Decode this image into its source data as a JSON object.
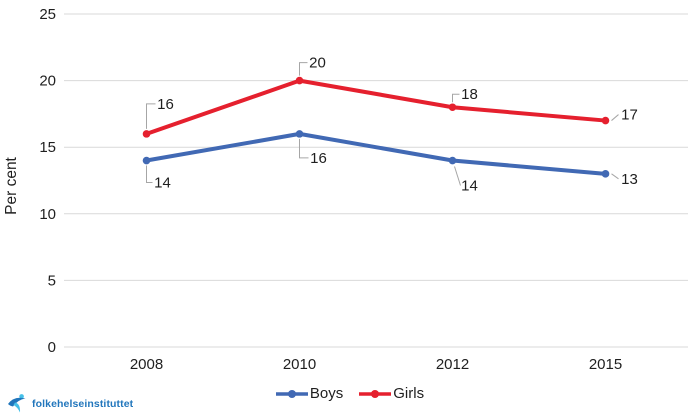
{
  "chart_data": {
    "type": "line",
    "categories": [
      "2008",
      "2010",
      "2012",
      "2015"
    ],
    "series": [
      {
        "name": "Boys",
        "color": "#4169B4",
        "values": [
          14,
          16,
          14,
          13
        ]
      },
      {
        "name": "Girls",
        "color": "#E5202E",
        "values": [
          16,
          20,
          18,
          17
        ]
      }
    ],
    "title": "",
    "xlabel": "",
    "ylabel": "Per cent",
    "ylim": [
      0,
      25
    ],
    "yticks": [
      0,
      5,
      10,
      15,
      20,
      25
    ],
    "grid": true,
    "data_labels": true,
    "legend_position": "bottom"
  },
  "legend": {
    "items": [
      "Boys",
      "Girls"
    ]
  },
  "logo": {
    "text": "folkehelseinstituttet",
    "color": "#2176BC"
  },
  "colors": {
    "background": "#FFFFFF",
    "gridline": "#D9D9D9",
    "axis_text": "#1F1F1F",
    "leader_line": "#A6A6A6"
  }
}
